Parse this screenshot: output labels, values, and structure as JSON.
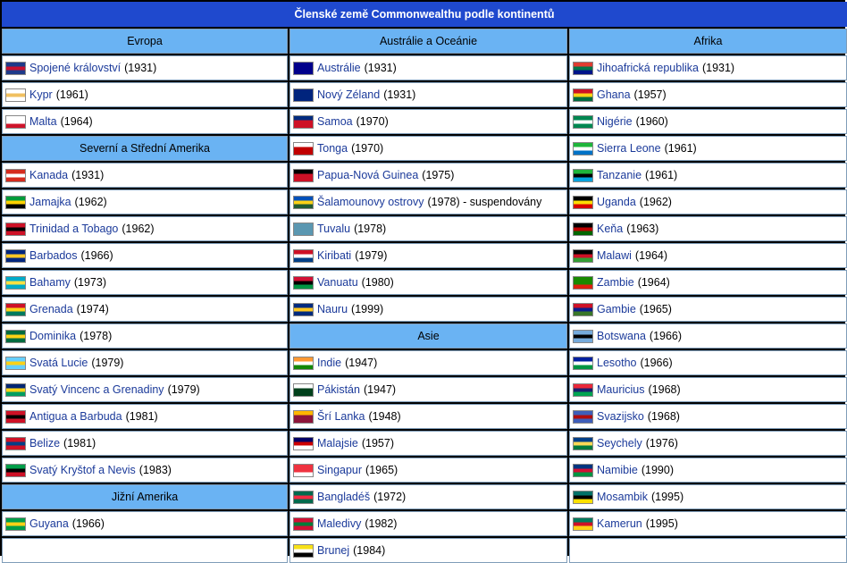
{
  "title": "Členské země Commonwealthu podle kontinentů",
  "columns": [
    {
      "header": "Evropa"
    },
    {
      "header": "Austrálie a Oceánie"
    },
    {
      "header": "Afrika"
    }
  ],
  "col1": [
    {
      "type": "country",
      "name": "Spojené království",
      "year": "(1931)",
      "flag": [
        "#1e3a8a",
        "#c8102e",
        "#1e3a8a"
      ]
    },
    {
      "type": "country",
      "name": "Kypr",
      "year": "(1961)",
      "flag": [
        "#ffffff",
        "#f0c060",
        "#ffffff"
      ]
    },
    {
      "type": "country",
      "name": "Malta",
      "year": "(1964)",
      "flag": [
        "#ffffff",
        "#ffffff",
        "#cf142b"
      ]
    },
    {
      "type": "header",
      "label": "Severní a Střední Amerika"
    },
    {
      "type": "country",
      "name": "Kanada",
      "year": "(1931)",
      "flag": [
        "#d52b1e",
        "#ffffff",
        "#d52b1e"
      ]
    },
    {
      "type": "country",
      "name": "Jamajka",
      "year": "(1962)",
      "flag": [
        "#009b3a",
        "#fed100",
        "#000000"
      ]
    },
    {
      "type": "country",
      "name": "Trinidad a Tobago",
      "year": "(1962)",
      "flag": [
        "#ce1126",
        "#000000",
        "#ce1126"
      ]
    },
    {
      "type": "country",
      "name": "Barbados",
      "year": "(1966)",
      "flag": [
        "#00267f",
        "#ffc726",
        "#00267f"
      ]
    },
    {
      "type": "country",
      "name": "Bahamy",
      "year": "(1973)",
      "flag": [
        "#00abc9",
        "#fae042",
        "#00abc9"
      ]
    },
    {
      "type": "country",
      "name": "Grenada",
      "year": "(1974)",
      "flag": [
        "#ce1126",
        "#fcd116",
        "#007a5e"
      ]
    },
    {
      "type": "country",
      "name": "Dominika",
      "year": "(1978)",
      "flag": [
        "#006b3f",
        "#fcd116",
        "#006b3f"
      ]
    },
    {
      "type": "country",
      "name": "Svatá Lucie",
      "year": "(1979)",
      "flag": [
        "#65cfff",
        "#fcd116",
        "#65cfff"
      ]
    },
    {
      "type": "country",
      "name": "Svatý Vincenc a Grenadiny",
      "year": "(1979)",
      "flag": [
        "#002674",
        "#fcd116",
        "#009e60"
      ]
    },
    {
      "type": "country",
      "name": "Antigua a Barbuda",
      "year": "(1981)",
      "flag": [
        "#ce1126",
        "#000000",
        "#ce1126"
      ]
    },
    {
      "type": "country",
      "name": "Belize",
      "year": "(1981)",
      "flag": [
        "#ce1126",
        "#003f87",
        "#ce1126"
      ]
    },
    {
      "type": "country",
      "name": "Svatý Kryštof a Nevis",
      "year": "(1983)",
      "flag": [
        "#009e49",
        "#000000",
        "#ce1126"
      ]
    },
    {
      "type": "header",
      "label": "Jižní Amerika"
    },
    {
      "type": "country",
      "name": "Guyana",
      "year": "(1966)",
      "flag": [
        "#009e49",
        "#fcd116",
        "#009e49"
      ]
    },
    {
      "type": "empty"
    }
  ],
  "col2": [
    {
      "type": "country",
      "name": "Austrálie",
      "year": "(1931)",
      "flag": [
        "#00008b",
        "#00008b",
        "#00008b"
      ]
    },
    {
      "type": "country",
      "name": "Nový Zéland",
      "year": "(1931)",
      "flag": [
        "#00247d",
        "#00247d",
        "#00247d"
      ]
    },
    {
      "type": "country",
      "name": "Samoa",
      "year": "(1970)",
      "flag": [
        "#002b7f",
        "#ce1126",
        "#ce1126"
      ]
    },
    {
      "type": "country",
      "name": "Tonga",
      "year": "(1970)",
      "flag": [
        "#ffffff",
        "#c10000",
        "#c10000"
      ]
    },
    {
      "type": "country",
      "name": "Papua-Nová Guinea",
      "year": "(1975)",
      "flag": [
        "#000000",
        "#ce1126",
        "#ce1126"
      ]
    },
    {
      "type": "country",
      "name": "Šalamounovy ostrovy",
      "year": "(1978)",
      "suffix": " - suspendovány",
      "flag": [
        "#0051ba",
        "#fcd116",
        "#215b33"
      ]
    },
    {
      "type": "country",
      "name": "Tuvalu",
      "year": "(1978)",
      "flag": [
        "#5b97b1",
        "#5b97b1",
        "#5b97b1"
      ]
    },
    {
      "type": "country",
      "name": "Kiribati",
      "year": "(1979)",
      "flag": [
        "#ce1126",
        "#ffffff",
        "#003f87"
      ]
    },
    {
      "type": "country",
      "name": "Vanuatu",
      "year": "(1980)",
      "flag": [
        "#d21034",
        "#000000",
        "#009543"
      ]
    },
    {
      "type": "country",
      "name": "Nauru",
      "year": "(1999)",
      "flag": [
        "#002b7f",
        "#ffc61e",
        "#002b7f"
      ]
    },
    {
      "type": "header",
      "label": "Asie"
    },
    {
      "type": "country",
      "name": "Indie",
      "year": "(1947)",
      "flag": [
        "#ff9933",
        "#ffffff",
        "#138808"
      ]
    },
    {
      "type": "country",
      "name": "Pákistán",
      "year": "(1947)",
      "flag": [
        "#ffffff",
        "#01411c",
        "#01411c"
      ]
    },
    {
      "type": "country",
      "name": "Šrí Lanka",
      "year": "(1948)",
      "flag": [
        "#ffb700",
        "#8d153a",
        "#8d153a"
      ]
    },
    {
      "type": "country",
      "name": "Malajsie",
      "year": "(1957)",
      "flag": [
        "#010066",
        "#cc0001",
        "#ffffff"
      ]
    },
    {
      "type": "country",
      "name": "Singapur",
      "year": "(1965)",
      "flag": [
        "#ef3340",
        "#ef3340",
        "#ffffff"
      ]
    },
    {
      "type": "country",
      "name": "Bangladéš",
      "year": "(1972)",
      "flag": [
        "#006a4e",
        "#f42a41",
        "#006a4e"
      ]
    },
    {
      "type": "country",
      "name": "Maledivy",
      "year": "(1982)",
      "flag": [
        "#d21034",
        "#007e3a",
        "#d21034"
      ]
    },
    {
      "type": "country",
      "name": "Brunej",
      "year": "(1984)",
      "flag": [
        "#f7e017",
        "#ffffff",
        "#000000"
      ]
    }
  ],
  "col3": [
    {
      "type": "country",
      "name": "Jihoafrická republika",
      "year": "(1931)",
      "flag": [
        "#e03c31",
        "#007749",
        "#001489"
      ]
    },
    {
      "type": "country",
      "name": "Ghana",
      "year": "(1957)",
      "flag": [
        "#ce1126",
        "#fcd116",
        "#006b3f"
      ]
    },
    {
      "type": "country",
      "name": "Nigérie",
      "year": "(1960)",
      "flag": [
        "#008751",
        "#ffffff",
        "#008751"
      ]
    },
    {
      "type": "country",
      "name": "Sierra Leone",
      "year": "(1961)",
      "flag": [
        "#1eb53a",
        "#ffffff",
        "#0072c6"
      ]
    },
    {
      "type": "country",
      "name": "Tanzanie",
      "year": "(1961)",
      "flag": [
        "#1eb53a",
        "#000000",
        "#00a3dd"
      ]
    },
    {
      "type": "country",
      "name": "Uganda",
      "year": "(1962)",
      "flag": [
        "#000000",
        "#fcdc04",
        "#d90000"
      ]
    },
    {
      "type": "country",
      "name": "Keňa",
      "year": "(1963)",
      "flag": [
        "#000000",
        "#bb0000",
        "#006600"
      ]
    },
    {
      "type": "country",
      "name": "Malawi",
      "year": "(1964)",
      "flag": [
        "#000000",
        "#ce1126",
        "#339e35"
      ]
    },
    {
      "type": "country",
      "name": "Zambie",
      "year": "(1964)",
      "flag": [
        "#198a00",
        "#198a00",
        "#de2010"
      ]
    },
    {
      "type": "country",
      "name": "Gambie",
      "year": "(1965)",
      "flag": [
        "#ce1126",
        "#0c1c8c",
        "#3a7728"
      ]
    },
    {
      "type": "country",
      "name": "Botswana",
      "year": "(1966)",
      "flag": [
        "#75aadb",
        "#000000",
        "#75aadb"
      ]
    },
    {
      "type": "country",
      "name": "Lesotho",
      "year": "(1966)",
      "flag": [
        "#00209f",
        "#ffffff",
        "#009543"
      ]
    },
    {
      "type": "country",
      "name": "Mauricius",
      "year": "(1968)",
      "flag": [
        "#ea2839",
        "#1a206d",
        "#00a551"
      ]
    },
    {
      "type": "country",
      "name": "Svazijsko",
      "year": "(1968)",
      "flag": [
        "#3e5eb9",
        "#b10c0c",
        "#3e5eb9"
      ]
    },
    {
      "type": "country",
      "name": "Seychely",
      "year": "(1976)",
      "flag": [
        "#003f87",
        "#fcd856",
        "#007a3d"
      ]
    },
    {
      "type": "country",
      "name": "Namibie",
      "year": "(1990)",
      "flag": [
        "#003580",
        "#d21034",
        "#009543"
      ]
    },
    {
      "type": "country",
      "name": "Mosambik",
      "year": "(1995)",
      "flag": [
        "#007168",
        "#000000",
        "#fce100"
      ]
    },
    {
      "type": "country",
      "name": "Kamerun",
      "year": "(1995)",
      "flag": [
        "#007a5e",
        "#ce1126",
        "#fcd116"
      ]
    },
    {
      "type": "empty"
    }
  ]
}
